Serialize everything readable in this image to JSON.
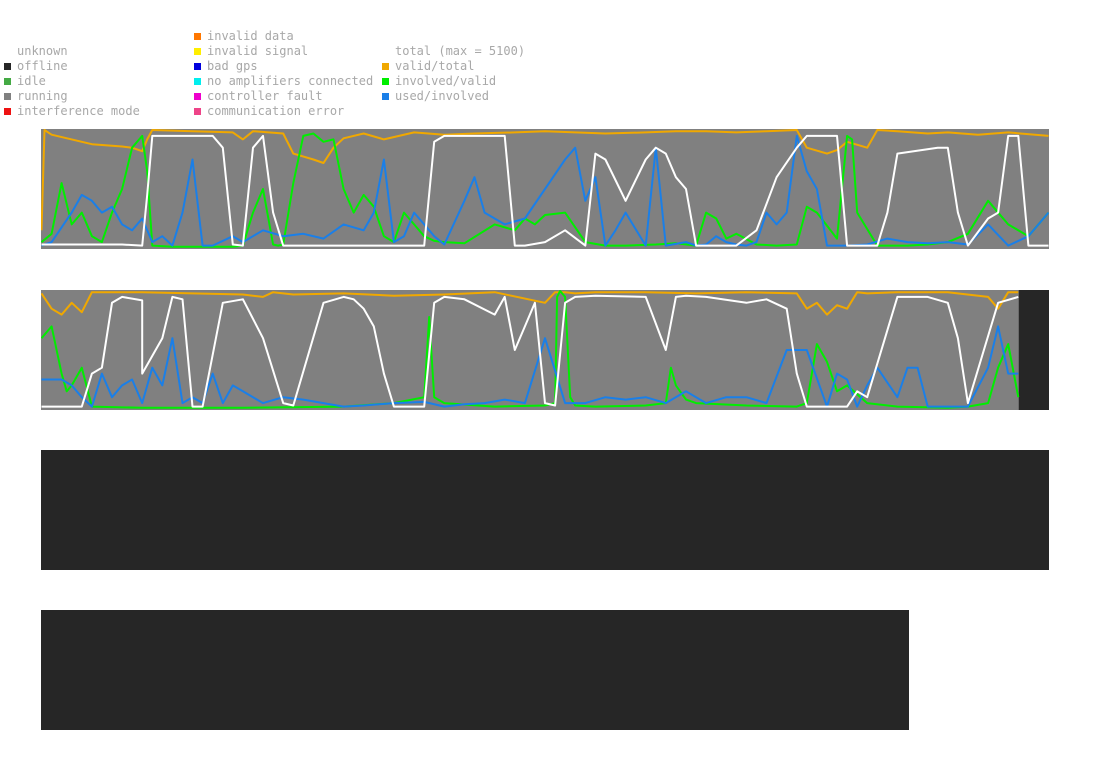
{
  "legend": {
    "status": [
      {
        "label": "unknown",
        "color": ""
      },
      {
        "label": "offline",
        "color": "#262626"
      },
      {
        "label": "idle",
        "color": "#44aa44"
      },
      {
        "label": "running",
        "color": "#808080"
      },
      {
        "label": "interference mode",
        "color": "#ee1111"
      }
    ],
    "errors": [
      {
        "label": "invalid data",
        "color": "#ff7700"
      },
      {
        "label": "invalid signal",
        "color": "#ffee00"
      },
      {
        "label": "bad gps",
        "color": "#0000dd"
      },
      {
        "label": "no amplifiers connected",
        "color": "#00eeee"
      },
      {
        "label": "controller fault",
        "color": "#ee00cc"
      },
      {
        "label": "communication error",
        "color": "#ee4488"
      }
    ],
    "metrics": [
      {
        "label": "total (max = 5100)",
        "color": ""
      },
      {
        "label": "valid/total",
        "color": "#f0a800"
      },
      {
        "label": "involved/valid",
        "color": "#00ee00"
      },
      {
        "label": "used/involved",
        "color": "#1a7fe8"
      }
    ]
  },
  "chart_data": [
    {
      "type": "line",
      "background": "running",
      "x_range": [
        0,
        1
      ],
      "ylim": [
        0,
        1
      ],
      "series": [
        {
          "name": "valid/total",
          "color": "#f0a800",
          "x": [
            0,
            0.003,
            0.01,
            0.05,
            0.08,
            0.09,
            0.1,
            0.105,
            0.11,
            0.15,
            0.19,
            0.2,
            0.21,
            0.24,
            0.25,
            0.27,
            0.28,
            0.29,
            0.3,
            0.32,
            0.34,
            0.37,
            0.4,
            0.43,
            0.47,
            0.5,
            0.53,
            0.56,
            0.6,
            0.63,
            0.66,
            0.69,
            0.72,
            0.75,
            0.76,
            0.78,
            0.79,
            0.8,
            0.82,
            0.83,
            0.85,
            0.88,
            0.9,
            0.93,
            0.96,
            1.0
          ],
          "y": [
            0.15,
            1,
            0.96,
            0.88,
            0.86,
            0.85,
            0.82,
            0.92,
            1,
            0.99,
            0.98,
            0.92,
            0.99,
            0.97,
            0.8,
            0.75,
            0.72,
            0.85,
            0.93,
            0.97,
            0.92,
            0.98,
            0.96,
            0.97,
            0.98,
            0.99,
            0.98,
            0.97,
            0.98,
            0.99,
            0.99,
            0.98,
            0.99,
            1,
            0.85,
            0.8,
            0.83,
            0.9,
            0.85,
            1,
            0.99,
            0.97,
            0.98,
            0.96,
            0.98,
            0.95
          ]
        },
        {
          "name": "involved/valid",
          "color": "#00ee00",
          "x": [
            0,
            0.01,
            0.02,
            0.03,
            0.04,
            0.05,
            0.06,
            0.07,
            0.08,
            0.09,
            0.1,
            0.105,
            0.11,
            0.13,
            0.15,
            0.19,
            0.2,
            0.21,
            0.22,
            0.23,
            0.235,
            0.24,
            0.25,
            0.26,
            0.27,
            0.28,
            0.29,
            0.3,
            0.31,
            0.32,
            0.33,
            0.34,
            0.35,
            0.36,
            0.37,
            0.38,
            0.39,
            0.4,
            0.42,
            0.45,
            0.47,
            0.48,
            0.49,
            0.5,
            0.52,
            0.54,
            0.56,
            0.58,
            0.61,
            0.63,
            0.65,
            0.66,
            0.67,
            0.68,
            0.69,
            0.71,
            0.73,
            0.75,
            0.76,
            0.77,
            0.79,
            0.8,
            0.805,
            0.81,
            0.83,
            0.86,
            0.88,
            0.9,
            0.92,
            0.94,
            0.96,
            0.98,
            1.0
          ],
          "y": [
            0.05,
            0.12,
            0.55,
            0.2,
            0.3,
            0.1,
            0.05,
            0.3,
            0.5,
            0.85,
            0.95,
            0.65,
            0.02,
            0.01,
            0.01,
            0.01,
            0.02,
            0.3,
            0.5,
            0.03,
            0.02,
            0.03,
            0.55,
            0.95,
            0.97,
            0.9,
            0.92,
            0.5,
            0.3,
            0.45,
            0.35,
            0.1,
            0.05,
            0.3,
            0.2,
            0.1,
            0.06,
            0.05,
            0.04,
            0.2,
            0.15,
            0.25,
            0.2,
            0.28,
            0.3,
            0.05,
            0.02,
            0.02,
            0.03,
            0.04,
            0.02,
            0.3,
            0.25,
            0.08,
            0.12,
            0.03,
            0.02,
            0.03,
            0.35,
            0.3,
            0.08,
            0.95,
            0.92,
            0.3,
            0.02,
            0.02,
            0.03,
            0.05,
            0.12,
            0.4,
            0.2,
            0.1,
            0.3
          ]
        },
        {
          "name": "used/involved",
          "color": "#1a7fe8",
          "x": [
            0,
            0.01,
            0.03,
            0.04,
            0.05,
            0.06,
            0.07,
            0.08,
            0.09,
            0.1,
            0.11,
            0.12,
            0.13,
            0.14,
            0.15,
            0.16,
            0.17,
            0.19,
            0.2,
            0.22,
            0.24,
            0.26,
            0.28,
            0.3,
            0.32,
            0.33,
            0.34,
            0.35,
            0.36,
            0.37,
            0.38,
            0.39,
            0.4,
            0.42,
            0.43,
            0.44,
            0.46,
            0.48,
            0.5,
            0.52,
            0.53,
            0.54,
            0.55,
            0.56,
            0.57,
            0.58,
            0.6,
            0.61,
            0.62,
            0.64,
            0.65,
            0.66,
            0.67,
            0.68,
            0.69,
            0.7,
            0.71,
            0.72,
            0.73,
            0.74,
            0.75,
            0.76,
            0.77,
            0.78,
            0.8,
            0.82,
            0.84,
            0.86,
            0.88,
            0.9,
            0.92,
            0.94,
            0.96,
            0.98,
            1.0
          ],
          "y": [
            0.02,
            0.05,
            0.3,
            0.45,
            0.4,
            0.3,
            0.35,
            0.2,
            0.15,
            0.25,
            0.05,
            0.1,
            0.02,
            0.3,
            0.75,
            0.02,
            0.02,
            0.1,
            0.05,
            0.15,
            0.1,
            0.12,
            0.08,
            0.2,
            0.15,
            0.3,
            0.75,
            0.05,
            0.1,
            0.3,
            0.2,
            0.1,
            0.03,
            0.4,
            0.6,
            0.3,
            0.2,
            0.25,
            0.5,
            0.75,
            0.85,
            0.4,
            0.6,
            0.02,
            0.15,
            0.3,
            0.02,
            0.85,
            0.02,
            0.05,
            0.02,
            0.03,
            0.1,
            0.05,
            0.03,
            0.02,
            0.05,
            0.3,
            0.2,
            0.3,
            0.95,
            0.65,
            0.5,
            0.02,
            0.02,
            0.03,
            0.08,
            0.05,
            0.04,
            0.05,
            0.03,
            0.2,
            0.02,
            0.1,
            0.3
          ]
        },
        {
          "name": "total",
          "color": "#ffffff",
          "x": [
            0,
            0.08,
            0.1,
            0.105,
            0.11,
            0.17,
            0.18,
            0.19,
            0.2,
            0.21,
            0.22,
            0.23,
            0.24,
            0.25,
            0.27,
            0.33,
            0.38,
            0.39,
            0.4,
            0.41,
            0.46,
            0.47,
            0.48,
            0.5,
            0.52,
            0.54,
            0.55,
            0.56,
            0.58,
            0.6,
            0.61,
            0.62,
            0.63,
            0.64,
            0.65,
            0.66,
            0.67,
            0.69,
            0.71,
            0.73,
            0.75,
            0.76,
            0.79,
            0.8,
            0.82,
            0.83,
            0.84,
            0.85,
            0.89,
            0.9,
            0.91,
            0.92,
            0.94,
            0.95,
            0.96,
            0.97,
            0.98,
            1.0
          ],
          "y": [
            0.03,
            0.03,
            0.02,
            0.45,
            0.95,
            0.95,
            0.85,
            0.03,
            0.02,
            0.85,
            0.95,
            0.3,
            0.02,
            0.02,
            0.02,
            0.02,
            0.02,
            0.9,
            0.95,
            0.95,
            0.95,
            0.02,
            0.02,
            0.05,
            0.15,
            0.02,
            0.8,
            0.75,
            0.4,
            0.75,
            0.85,
            0.8,
            0.6,
            0.5,
            0.02,
            0.02,
            0.02,
            0.02,
            0.15,
            0.6,
            0.85,
            0.95,
            0.95,
            0.02,
            0.02,
            0.02,
            0.3,
            0.8,
            0.85,
            0.85,
            0.3,
            0.02,
            0.25,
            0.3,
            0.95,
            0.95,
            0.02,
            0.02
          ]
        }
      ]
    },
    {
      "type": "line",
      "background": "running",
      "offline_from": 0.97,
      "x_range": [
        0,
        1
      ],
      "ylim": [
        0,
        1
      ],
      "series": [
        {
          "name": "valid/total",
          "color": "#f0a800",
          "x": [
            0,
            0.01,
            0.02,
            0.03,
            0.04,
            0.05,
            0.1,
            0.15,
            0.2,
            0.22,
            0.23,
            0.25,
            0.3,
            0.35,
            0.4,
            0.45,
            0.5,
            0.51,
            0.52,
            0.53,
            0.55,
            0.6,
            0.65,
            0.7,
            0.75,
            0.76,
            0.77,
            0.78,
            0.79,
            0.8,
            0.81,
            0.82,
            0.85,
            0.9,
            0.94,
            0.95,
            0.96,
            0.97
          ],
          "y": [
            0.98,
            0.85,
            0.8,
            0.9,
            0.82,
            0.99,
            0.99,
            0.98,
            0.97,
            0.95,
            0.99,
            0.97,
            0.98,
            0.96,
            0.97,
            0.99,
            0.9,
            0.99,
            0.99,
            0.98,
            0.99,
            0.99,
            0.98,
            0.99,
            0.98,
            0.85,
            0.9,
            0.8,
            0.88,
            0.85,
            0.99,
            0.98,
            0.99,
            0.99,
            0.95,
            0.85,
            0.99,
            0.99
          ]
        },
        {
          "name": "involved/valid",
          "color": "#00ee00",
          "x": [
            0,
            0.01,
            0.02,
            0.025,
            0.03,
            0.04,
            0.05,
            0.1,
            0.2,
            0.3,
            0.35,
            0.38,
            0.385,
            0.39,
            0.4,
            0.45,
            0.5,
            0.51,
            0.512,
            0.515,
            0.52,
            0.525,
            0.53,
            0.55,
            0.6,
            0.62,
            0.625,
            0.63,
            0.64,
            0.65,
            0.7,
            0.75,
            0.76,
            0.77,
            0.78,
            0.79,
            0.8,
            0.82,
            0.85,
            0.9,
            0.92,
            0.94,
            0.95,
            0.96,
            0.97
          ],
          "y": [
            0.6,
            0.7,
            0.3,
            0.15,
            0.2,
            0.35,
            0.02,
            0.01,
            0.01,
            0.02,
            0.05,
            0.1,
            0.78,
            0.1,
            0.05,
            0.02,
            0.03,
            0.05,
            0.95,
            1,
            0.95,
            0.1,
            0.03,
            0.02,
            0.03,
            0.05,
            0.35,
            0.2,
            0.08,
            0.05,
            0.03,
            0.02,
            0.05,
            0.55,
            0.4,
            0.15,
            0.2,
            0.05,
            0.02,
            0.01,
            0.02,
            0.05,
            0.35,
            0.55,
            0.1
          ]
        },
        {
          "name": "used/involved",
          "color": "#1a7fe8",
          "x": [
            0,
            0.02,
            0.03,
            0.04,
            0.05,
            0.06,
            0.07,
            0.08,
            0.09,
            0.1,
            0.11,
            0.12,
            0.13,
            0.14,
            0.15,
            0.16,
            0.17,
            0.18,
            0.19,
            0.2,
            0.22,
            0.24,
            0.26,
            0.28,
            0.3,
            0.32,
            0.35,
            0.38,
            0.4,
            0.42,
            0.44,
            0.46,
            0.48,
            0.5,
            0.52,
            0.54,
            0.56,
            0.58,
            0.6,
            0.62,
            0.64,
            0.66,
            0.68,
            0.7,
            0.72,
            0.74,
            0.76,
            0.78,
            0.79,
            0.8,
            0.81,
            0.82,
            0.83,
            0.85,
            0.86,
            0.87,
            0.88,
            0.9,
            0.92,
            0.94,
            0.95,
            0.96,
            0.97
          ],
          "y": [
            0.25,
            0.25,
            0.2,
            0.1,
            0.02,
            0.3,
            0.1,
            0.2,
            0.25,
            0.05,
            0.35,
            0.2,
            0.6,
            0.05,
            0.1,
            0.05,
            0.3,
            0.05,
            0.2,
            0.15,
            0.05,
            0.1,
            0.08,
            0.05,
            0.02,
            0.03,
            0.05,
            0.06,
            0.02,
            0.04,
            0.05,
            0.08,
            0.05,
            0.6,
            0.05,
            0.05,
            0.1,
            0.08,
            0.1,
            0.05,
            0.15,
            0.05,
            0.1,
            0.1,
            0.05,
            0.5,
            0.5,
            0.02,
            0.3,
            0.25,
            0.02,
            0.2,
            0.35,
            0.1,
            0.35,
            0.35,
            0.02,
            0.02,
            0.02,
            0.35,
            0.7,
            0.3,
            0.3
          ]
        },
        {
          "name": "total",
          "color": "#ffffff",
          "x": [
            0,
            0.04,
            0.05,
            0.06,
            0.07,
            0.08,
            0.1,
            0.1,
            0.12,
            0.13,
            0.14,
            0.15,
            0.16,
            0.18,
            0.2,
            0.22,
            0.24,
            0.25,
            0.28,
            0.3,
            0.31,
            0.32,
            0.33,
            0.34,
            0.35,
            0.38,
            0.39,
            0.4,
            0.42,
            0.45,
            0.46,
            0.47,
            0.48,
            0.49,
            0.5,
            0.51,
            0.52,
            0.53,
            0.55,
            0.6,
            0.62,
            0.63,
            0.64,
            0.66,
            0.7,
            0.72,
            0.74,
            0.75,
            0.76,
            0.77,
            0.79,
            0.8,
            0.81,
            0.82,
            0.85,
            0.88,
            0.9,
            0.91,
            0.92,
            0.95,
            0.97
          ],
          "y": [
            0.02,
            0.02,
            0.3,
            0.35,
            0.9,
            0.95,
            0.92,
            0.3,
            0.6,
            0.95,
            0.93,
            0.02,
            0.02,
            0.9,
            0.93,
            0.6,
            0.05,
            0.03,
            0.9,
            0.95,
            0.93,
            0.85,
            0.7,
            0.3,
            0.02,
            0.02,
            0.9,
            0.95,
            0.93,
            0.8,
            0.95,
            0.5,
            0.7,
            0.9,
            0.05,
            0.03,
            0.9,
            0.95,
            0.96,
            0.95,
            0.5,
            0.95,
            0.96,
            0.95,
            0.9,
            0.93,
            0.85,
            0.3,
            0.02,
            0.02,
            0.02,
            0.02,
            0.15,
            0.1,
            0.95,
            0.95,
            0.9,
            0.6,
            0.05,
            0.9,
            0.95
          ]
        }
      ]
    },
    {
      "type": "line",
      "background": "offline",
      "series": []
    },
    {
      "type": "line",
      "background": "offline",
      "series": []
    }
  ]
}
